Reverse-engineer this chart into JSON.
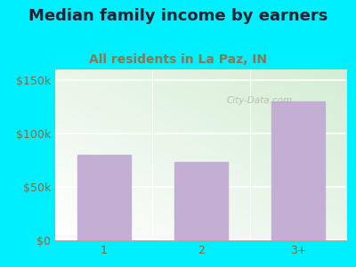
{
  "title": "Median family income by earners",
  "subtitle": "All residents in La Paz, IN",
  "categories": [
    "1",
    "2",
    "3+"
  ],
  "values": [
    80000,
    73000,
    130000
  ],
  "bar_color": "#c4afd4",
  "outer_bg": "#00efff",
  "plot_bg_colors": [
    "#ffffff",
    "#d4edd4"
  ],
  "title_color": "#222233",
  "subtitle_color": "#887755",
  "axis_label_color": "#886644",
  "ytick_labels": [
    "$0",
    "$50k",
    "$100k",
    "$150k"
  ],
  "ytick_values": [
    0,
    50000,
    100000,
    150000
  ],
  "ylim": [
    0,
    160000
  ],
  "title_fontsize": 13,
  "subtitle_fontsize": 10,
  "tick_fontsize": 9,
  "watermark_text": "City-Data.com"
}
